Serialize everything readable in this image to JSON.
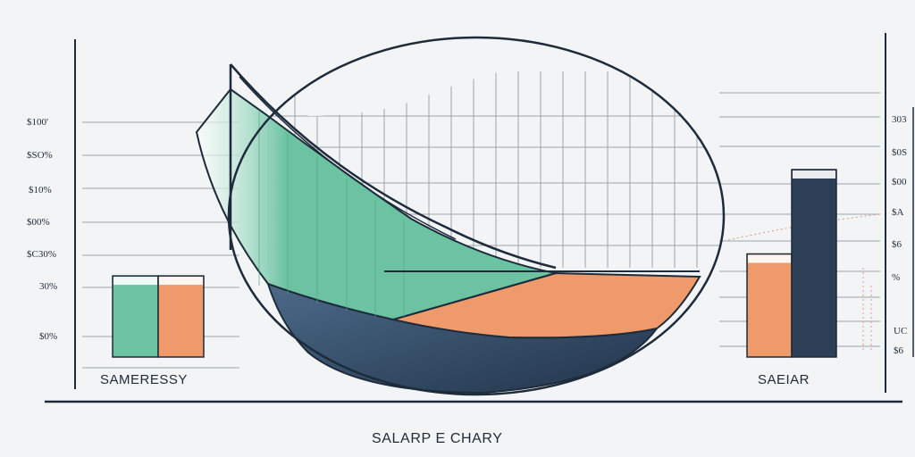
{
  "colors": {
    "background": "#f2f4f5",
    "ink": "#1d2b3a",
    "grid": "#9aa3ab",
    "green": "#6cc3a2",
    "orange": "#ef9a6a",
    "navy": "#2c3f57",
    "navy_light": "#3f5a76"
  },
  "chart_title": "SALARP E CHARY",
  "left_ticks": [
    "$100'",
    "$SO%",
    "$10%",
    "$00%",
    "$C30%",
    "30%",
    "$0%"
  ],
  "right_ticks": [
    "303",
    "$0S",
    "$00",
    "$A",
    "$6",
    "%",
    "UC",
    "$6"
  ],
  "chart_data": [
    {
      "type": "bar",
      "caption": "SAMERESSY",
      "series": [
        {
          "color": "#6cc3a2",
          "values": [
            0.45
          ]
        },
        {
          "color": "#ef9a6a",
          "values": [
            0.45
          ]
        }
      ]
    },
    {
      "type": "area",
      "series": [
        {
          "color": "#6cc3a2",
          "values": [
            1.0,
            0.75,
            0.5,
            0.25,
            0.1
          ]
        },
        {
          "color": "#ef9a6a",
          "values": [
            0.0,
            0.05,
            0.2,
            0.45,
            0.75
          ]
        }
      ]
    },
    {
      "type": "bar",
      "caption": "SAEIAR",
      "series": [
        {
          "color": "#ef9a6a",
          "values": [
            0.55
          ]
        },
        {
          "color": "#2c3f57",
          "values": [
            1.0
          ]
        }
      ]
    }
  ]
}
